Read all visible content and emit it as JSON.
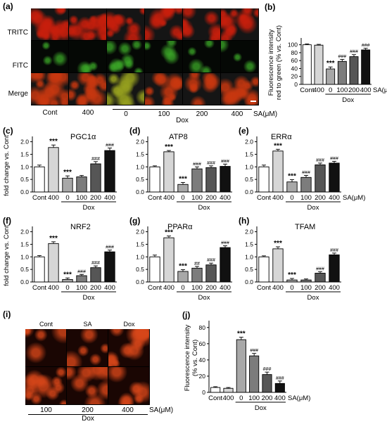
{
  "panel_a": {
    "letter": "(a)",
    "row_labels": [
      "TRITC",
      "FITC",
      "Merge"
    ],
    "col_labels": [
      "Cont",
      "400",
      "0",
      "100",
      "200",
      "400"
    ],
    "dox_label": "Dox",
    "sa_unit": "SA(μM)"
  },
  "panel_i": {
    "letter": "(i)",
    "top_labels": [
      "Cont",
      "SA",
      "Dox"
    ],
    "bottom_labels": [
      "100",
      "200",
      "400"
    ],
    "sa_unit": "SA(μM)",
    "dox_label": "Dox"
  },
  "colors": {
    "tritc": "#c01808",
    "fitc": "#2a8a1e",
    "merge_red": "#c23a10",
    "dark": "#151515"
  },
  "chart_data": [
    {
      "id": "b",
      "letter": "(b)",
      "type": "bar",
      "title": "",
      "ylabel": "Fluorescence intensity red to green (% vs. Cont)",
      "yticks": [
        0,
        20,
        40,
        60,
        80,
        100
      ],
      "ylim": [
        0,
        110
      ],
      "categories": [
        "Cont",
        "400",
        "0",
        "100",
        "200",
        "400"
      ],
      "values": [
        100,
        99,
        39,
        58,
        70,
        87
      ],
      "errors": [
        2,
        2,
        5,
        5,
        5,
        4
      ],
      "sig": [
        "",
        "",
        "***",
        "###",
        "###",
        "###"
      ],
      "colors": [
        "#ffffff",
        "#d6d6d6",
        "#a8a8a8",
        "#7c7c7c",
        "#565656",
        "#111111"
      ],
      "group_label": "Dox",
      "unit_label": "SA(μM)"
    },
    {
      "id": "c",
      "letter": "(c)",
      "type": "bar",
      "title": "PGC1α",
      "ylabel": "fold change vs. Cont",
      "yticks": [
        0,
        0.5,
        1.0,
        1.5,
        2.0
      ],
      "ylim": [
        0,
        2.1
      ],
      "categories": [
        "Cont",
        "400",
        "0",
        "100",
        "200",
        "400"
      ],
      "values": [
        1.0,
        1.77,
        0.55,
        0.6,
        1.12,
        1.65
      ],
      "errors": [
        0.07,
        0.1,
        0.09,
        0.06,
        0.09,
        0.1
      ],
      "sig": [
        "",
        "***",
        "***",
        "",
        "###",
        "###"
      ],
      "colors": [
        "#ffffff",
        "#d6d6d6",
        "#a8a8a8",
        "#7c7c7c",
        "#565656",
        "#111111"
      ],
      "group_label": "Dox",
      "unit_label": ""
    },
    {
      "id": "d",
      "letter": "(d)",
      "type": "bar",
      "title": "ATP8",
      "ylabel": "",
      "yticks": [
        0,
        0.5,
        1.0,
        1.5,
        2.0
      ],
      "ylim": [
        0,
        2.1
      ],
      "categories": [
        "Cont",
        "400",
        "0",
        "100",
        "200",
        "400"
      ],
      "values": [
        1.0,
        1.6,
        0.3,
        0.92,
        0.97,
        1.02
      ],
      "errors": [
        0.04,
        0.05,
        0.08,
        0.08,
        0.07,
        0.09
      ],
      "sig": [
        "",
        "***",
        "***",
        "###",
        "###",
        "###"
      ],
      "colors": [
        "#ffffff",
        "#d6d6d6",
        "#a8a8a8",
        "#7c7c7c",
        "#565656",
        "#111111"
      ],
      "group_label": "Dox",
      "unit_label": ""
    },
    {
      "id": "e",
      "letter": "(e)",
      "type": "bar",
      "title": "ERRα",
      "ylabel": "",
      "yticks": [
        0,
        0.5,
        1.0,
        1.5,
        2.0
      ],
      "ylim": [
        0,
        2.1
      ],
      "categories": [
        "Cont",
        "400",
        "0",
        "100",
        "200",
        "400"
      ],
      "values": [
        1.0,
        1.63,
        0.4,
        0.58,
        1.08,
        1.15
      ],
      "errors": [
        0.07,
        0.07,
        0.09,
        0.08,
        0.07,
        0.07
      ],
      "sig": [
        "",
        "***",
        "***",
        "###",
        "###",
        "###"
      ],
      "colors": [
        "#ffffff",
        "#d6d6d6",
        "#a8a8a8",
        "#7c7c7c",
        "#565656",
        "#111111"
      ],
      "group_label": "Dox",
      "unit_label": "SA(μM)"
    },
    {
      "id": "f",
      "letter": "(f)",
      "type": "bar",
      "title": "NRF2",
      "ylabel": "fold change vs. Cont",
      "yticks": [
        0,
        0.5,
        1.0,
        1.5,
        2.0
      ],
      "ylim": [
        0,
        2.1
      ],
      "categories": [
        "Cont",
        "400",
        "0",
        "100",
        "200",
        "400"
      ],
      "values": [
        1.0,
        1.53,
        0.1,
        0.25,
        0.57,
        1.2
      ],
      "errors": [
        0.05,
        0.07,
        0.06,
        0.05,
        0.07,
        0.07
      ],
      "sig": [
        "",
        "***",
        "***",
        "###",
        "###",
        "###"
      ],
      "colors": [
        "#ffffff",
        "#d6d6d6",
        "#a8a8a8",
        "#7c7c7c",
        "#565656",
        "#111111"
      ],
      "group_label": "Dox",
      "unit_label": ""
    },
    {
      "id": "g",
      "letter": "(g)",
      "type": "bar",
      "title": "PPARα",
      "ylabel": "",
      "yticks": [
        0,
        0.5,
        1.0,
        1.5,
        2.0
      ],
      "ylim": [
        0,
        2.1
      ],
      "categories": [
        "Cont",
        "400",
        "0",
        "100",
        "200",
        "400"
      ],
      "values": [
        1.0,
        1.76,
        0.42,
        0.55,
        0.68,
        1.37
      ],
      "errors": [
        0.07,
        0.07,
        0.07,
        0.07,
        0.07,
        0.07
      ],
      "sig": [
        "",
        "***",
        "***",
        "##",
        "###",
        "###"
      ],
      "colors": [
        "#ffffff",
        "#d6d6d6",
        "#a8a8a8",
        "#7c7c7c",
        "#565656",
        "#111111"
      ],
      "group_label": "Dox",
      "unit_label": ""
    },
    {
      "id": "h",
      "letter": "(h)",
      "type": "bar",
      "title": "TFAM",
      "ylabel": "",
      "yticks": [
        0,
        0.5,
        1.0,
        1.5,
        2.0
      ],
      "ylim": [
        0,
        2.1
      ],
      "categories": [
        "Cont",
        "400",
        "0",
        "100",
        "200",
        "400"
      ],
      "values": [
        1.0,
        1.32,
        0.08,
        0.08,
        0.35,
        1.08
      ],
      "errors": [
        0.04,
        0.08,
        0.06,
        0.04,
        0.06,
        0.07
      ],
      "sig": [
        "",
        "***",
        "***",
        "",
        "###",
        "###"
      ],
      "colors": [
        "#ffffff",
        "#d6d6d6",
        "#a8a8a8",
        "#7c7c7c",
        "#565656",
        "#111111"
      ],
      "group_label": "Dox",
      "unit_label": ""
    },
    {
      "id": "j",
      "letter": "(j)",
      "type": "bar",
      "title": "",
      "ylabel": "Fluorescence intensity (% vs. Cont)",
      "yticks": [
        0,
        20,
        40,
        60,
        80
      ],
      "ylim": [
        0,
        85
      ],
      "categories": [
        "Cont",
        "400",
        "0",
        "100",
        "200",
        "400"
      ],
      "values": [
        6,
        5,
        65,
        45,
        22,
        11
      ],
      "errors": [
        1,
        1,
        3,
        3,
        3,
        3
      ],
      "sig": [
        "",
        "",
        "***",
        "###",
        "###",
        "###"
      ],
      "colors": [
        "#ffffff",
        "#d6d6d6",
        "#a8a8a8",
        "#7c7c7c",
        "#565656",
        "#111111"
      ],
      "group_label": "Dox",
      "unit_label": "SA(μM)"
    }
  ]
}
